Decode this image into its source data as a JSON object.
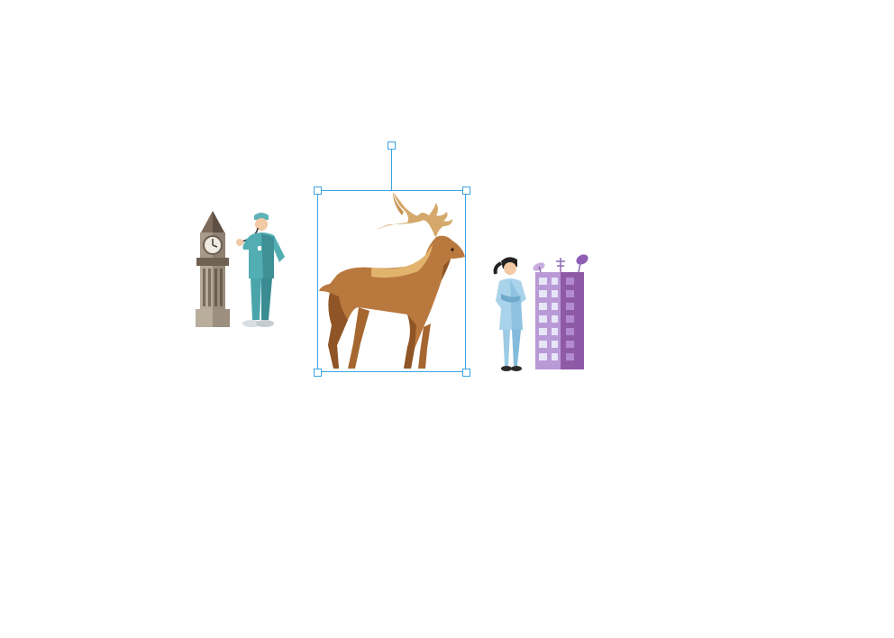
{
  "canvas": {
    "background": "#ffffff",
    "selection_color": "#3aa3e3"
  },
  "shapes": [
    {
      "icon": "clock-tower-icon",
      "selected": false
    },
    {
      "icon": "doctor-with-stethoscope-icon",
      "selected": false
    },
    {
      "icon": "elk-deer-icon",
      "selected": true
    },
    {
      "icon": "nurse-icon",
      "selected": false
    },
    {
      "icon": "office-building-with-antennas-icon",
      "selected": false
    }
  ]
}
